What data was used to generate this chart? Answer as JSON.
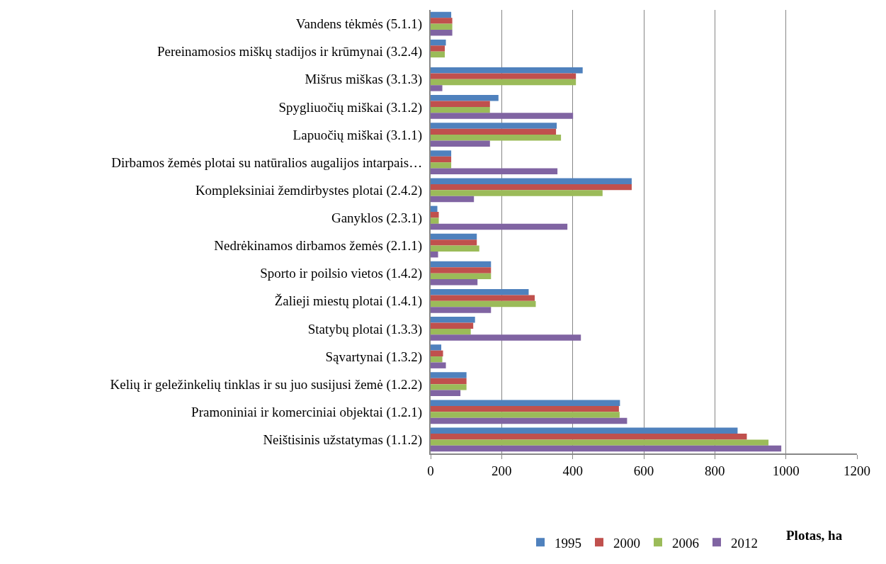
{
  "chart_data": {
    "type": "bar",
    "orientation": "horizontal",
    "xlabel": "Plotas, ha",
    "categories": [
      "Vandens tėkmės (5.1.1)",
      "Pereinamosios miškų stadijos ir krūmynai (3.2.4)",
      "Mišrus miškas (3.1.3)",
      "Spygliuočių miškai (3.1.2)",
      "Lapuočių miškai (3.1.1)",
      "Dirbamos žemės plotai su natūralios augalijos intarpais…",
      "Kompleksiniai žemdirbystes plotai (2.4.2)",
      "Ganyklos (2.3.1)",
      "Nedrėkinamos dirbamos žemės (2.1.1)",
      "Sporto ir poilsio vietos (1.4.2)",
      "Žalieji miestų plotai (1.4.1)",
      "Statybų plotai (1.3.3)",
      "Sąvartynai (1.3.2)",
      "Kelių ir geležinkelių tinklas ir su juo susijusi žemė (1.2.2)",
      "Pramoniniai ir komerciniai objektai (1.2.1)",
      "Neištisinis užstatymas (1.1.2)"
    ],
    "series": [
      {
        "name": "1995",
        "color": "#4f81bd",
        "values": [
          58,
          43,
          428,
          191,
          355,
          58,
          566,
          19,
          130,
          170,
          276,
          125,
          30,
          101,
          533,
          864
        ]
      },
      {
        "name": "2000",
        "color": "#c0504d",
        "values": [
          61,
          40,
          409,
          167,
          353,
          58,
          566,
          23,
          130,
          170,
          293,
          120,
          35,
          101,
          530,
          890
        ]
      },
      {
        "name": "2006",
        "color": "#9bbb59",
        "values": [
          61,
          40,
          409,
          167,
          367,
          58,
          484,
          23,
          137,
          170,
          296,
          113,
          33,
          101,
          532,
          951
        ]
      },
      {
        "name": "2012",
        "color": "#8064a2",
        "values": [
          61,
          null,
          33,
          401,
          167,
          357,
          122,
          385,
          21,
          132,
          170,
          423,
          43,
          84,
          553,
          987
        ]
      }
    ],
    "xlim": [
      0,
      1200
    ],
    "xticks": [
      0,
      200,
      400,
      600,
      800,
      1000,
      1200
    ],
    "grid": "x",
    "legend": "bottom"
  }
}
